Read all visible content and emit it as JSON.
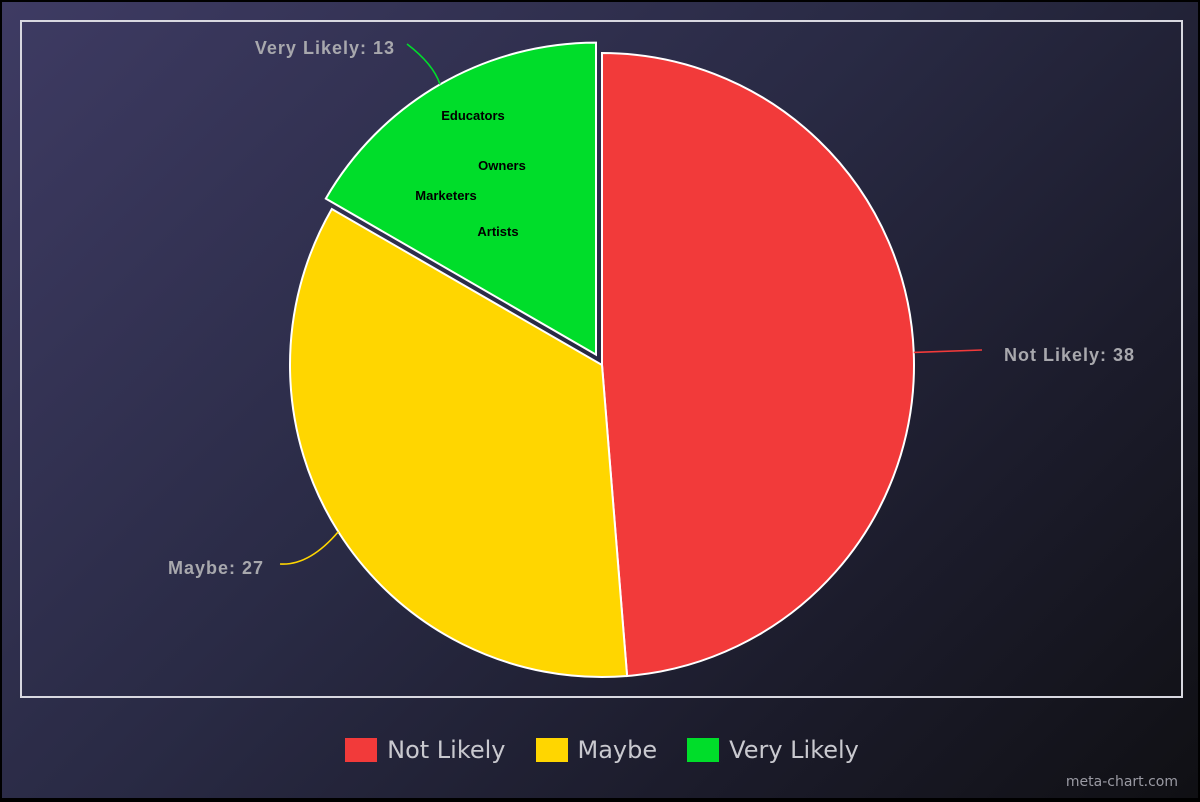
{
  "chart_data": {
    "type": "pie",
    "slices": [
      {
        "label": "Not Likely",
        "value": 38,
        "color": "#f23a3a",
        "callout": "Not Likely: 38"
      },
      {
        "label": "Maybe",
        "value": 27,
        "color": "#ffd600",
        "callout": "Maybe: 27"
      },
      {
        "label": "Very Likely",
        "value": 13,
        "color": "#00dd2a",
        "callout": "Very Likely: 13",
        "exploded": true
      }
    ],
    "inner_labels": [
      "Educators",
      "Owners",
      "Marketers",
      "Artists"
    ],
    "legend_placement": "bottom",
    "start": "12 o'clock, clockwise"
  },
  "legend": [
    {
      "label": "Not Likely",
      "color": "#f23a3a"
    },
    {
      "label": "Maybe",
      "color": "#ffd600"
    },
    {
      "label": "Very Likely",
      "color": "#00dd2a"
    }
  ],
  "credit": "meta-chart.com"
}
